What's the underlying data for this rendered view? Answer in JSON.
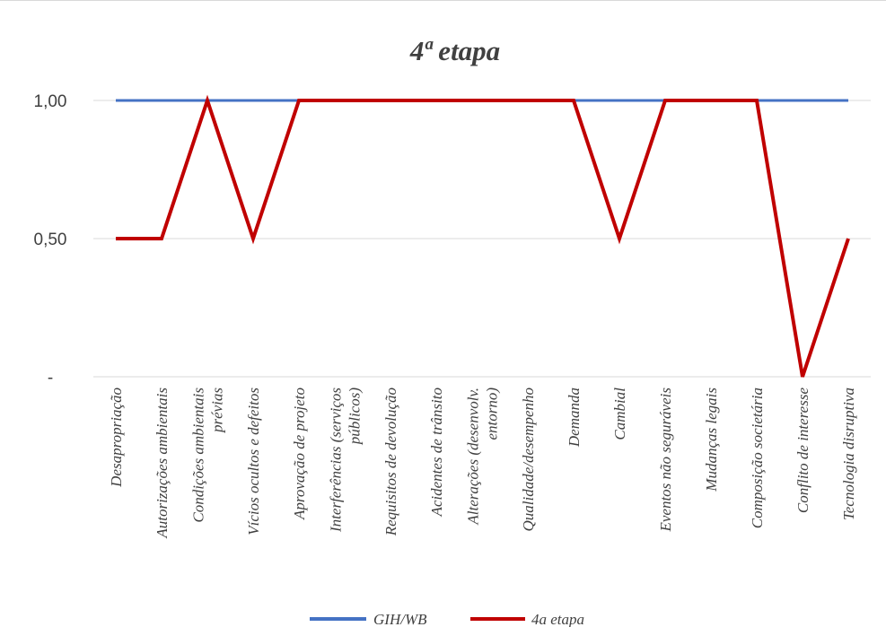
{
  "chart_data": {
    "type": "line",
    "title": "4ª etapa",
    "xlabel": "",
    "ylabel": "",
    "ylim": [
      0,
      1
    ],
    "yticks": [
      {
        "value": 1,
        "label": "1,00"
      },
      {
        "value": 0.5,
        "label": "0,50"
      },
      {
        "value": 0,
        "label": "-"
      }
    ],
    "grid": true,
    "legend_position": "bottom",
    "categories": [
      [
        "Desapropriação"
      ],
      [
        "Autorizações ambientais"
      ],
      [
        "Condições ambientais",
        "prévias"
      ],
      [
        "Vícios ocultos e defeitos"
      ],
      [
        "Aprovação de projeto"
      ],
      [
        "Interferências (serviços",
        "públicos)"
      ],
      [
        "Requisitos de devolução"
      ],
      [
        "Acidentes de trânsito"
      ],
      [
        "Alterações (desenvolv.",
        "entorno)"
      ],
      [
        "Qualidade/desempenho"
      ],
      [
        "Demanda"
      ],
      [
        "Cambial"
      ],
      [
        "Eventos não seguráveis"
      ],
      [
        "Mudanças legais"
      ],
      [
        "Composição societária"
      ],
      [
        "Conflito de interesse"
      ],
      [
        "Tecnologia disruptiva"
      ]
    ],
    "series": [
      {
        "name": "GIH/WB",
        "color": "#4472c4",
        "values": [
          1,
          1,
          1,
          1,
          1,
          1,
          1,
          1,
          1,
          1,
          1,
          1,
          1,
          1,
          1,
          1,
          1
        ]
      },
      {
        "name": "4a etapa",
        "color": "#c00000",
        "values": [
          0.5,
          0.5,
          1,
          0.5,
          1,
          1,
          1,
          1,
          1,
          1,
          1,
          0.5,
          1,
          1,
          1,
          0,
          0.5
        ]
      }
    ]
  }
}
